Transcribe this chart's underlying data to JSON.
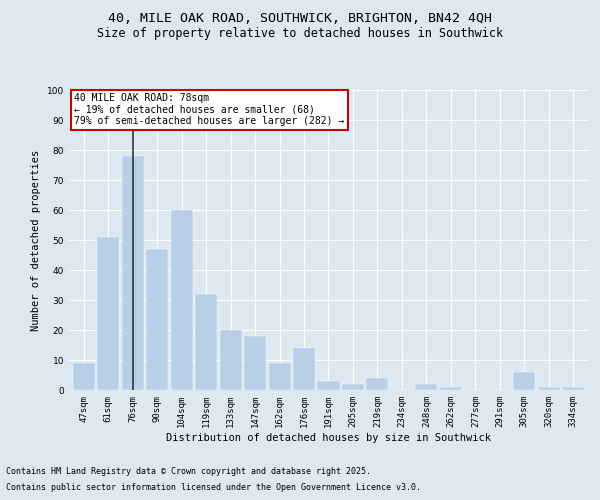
{
  "title_line1": "40, MILE OAK ROAD, SOUTHWICK, BRIGHTON, BN42 4QH",
  "title_line2": "Size of property relative to detached houses in Southwick",
  "xlabel": "Distribution of detached houses by size in Southwick",
  "ylabel": "Number of detached properties",
  "categories": [
    "47sqm",
    "61sqm",
    "76sqm",
    "90sqm",
    "104sqm",
    "119sqm",
    "133sqm",
    "147sqm",
    "162sqm",
    "176sqm",
    "191sqm",
    "205sqm",
    "219sqm",
    "234sqm",
    "248sqm",
    "262sqm",
    "277sqm",
    "291sqm",
    "305sqm",
    "320sqm",
    "334sqm"
  ],
  "values": [
    9,
    51,
    78,
    47,
    60,
    32,
    20,
    18,
    9,
    14,
    3,
    2,
    4,
    0,
    2,
    1,
    0,
    0,
    6,
    1,
    1
  ],
  "bar_color": "#b8cfe8",
  "bar_edge_color": "#b8cfe8",
  "vline_x": 2,
  "vline_color": "#333333",
  "annotation_text": "40 MILE OAK ROAD: 78sqm\n← 19% of detached houses are smaller (68)\n79% of semi-detached houses are larger (282) →",
  "annotation_box_color": "#ffffff",
  "annotation_box_edge": "#cc0000",
  "ylim": [
    0,
    100
  ],
  "yticks": [
    0,
    10,
    20,
    30,
    40,
    50,
    60,
    70,
    80,
    90,
    100
  ],
  "bg_color": "#dde8f0",
  "plot_bg_color": "#dde8f0",
  "footer_line1": "Contains HM Land Registry data © Crown copyright and database right 2025.",
  "footer_line2": "Contains public sector information licensed under the Open Government Licence v3.0.",
  "title_fontsize": 9.5,
  "subtitle_fontsize": 8.5,
  "axis_label_fontsize": 7.5,
  "tick_fontsize": 6.5,
  "annotation_fontsize": 7,
  "footer_fontsize": 6
}
